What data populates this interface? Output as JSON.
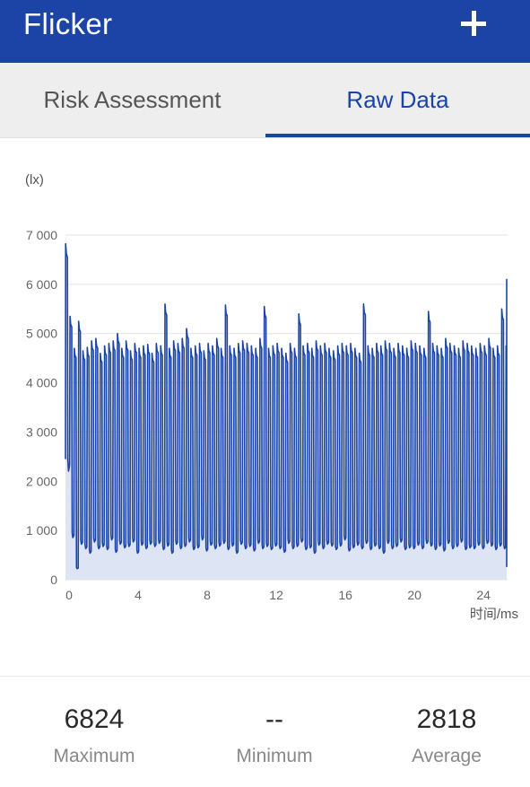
{
  "header": {
    "title": "Flicker",
    "add_icon": "plus-icon"
  },
  "tabs": [
    {
      "label": "Risk Assessment",
      "active": false
    },
    {
      "label": "Raw Data",
      "active": true
    }
  ],
  "colors": {
    "primary": "#1b44a6",
    "series": "#1b44a6",
    "fill": "#dde4f3"
  },
  "chart_data": {
    "type": "line",
    "ylabel": "(lx)",
    "xlabel": "时间/ms",
    "ylim": [
      0,
      7000
    ],
    "xlim": [
      0,
      25.6
    ],
    "yticks": [
      "0",
      "1 000",
      "2 000",
      "3 000",
      "4 000",
      "5 000",
      "6 000",
      "7 000"
    ],
    "xticks": [
      "0",
      "4",
      "8",
      "12",
      "16",
      "20",
      "24"
    ],
    "grid": true,
    "series": [
      {
        "period_ms": 0.25,
        "peak_values": [
          6824,
          5350,
          4700,
          5250,
          4650,
          4720,
          4850,
          4900,
          4600,
          4750,
          4800,
          4850,
          5000,
          4700,
          4850,
          4650,
          4800,
          4700,
          4750,
          4780,
          4600,
          4800,
          4750,
          5600,
          4700,
          4850,
          4800,
          4900,
          5100,
          4700,
          4750,
          4800,
          4650,
          4800,
          4750,
          4900,
          4700,
          5580,
          4750,
          4700,
          4800,
          4850,
          4800,
          4750,
          4700,
          4900,
          5550,
          4700,
          4750,
          4800,
          4700,
          4600,
          4800,
          4700,
          5400,
          4750,
          4800,
          4700,
          4850,
          4750,
          4800,
          4700,
          4650,
          4750,
          4800,
          4750,
          4800,
          4700,
          4600,
          5600,
          4750,
          4700,
          4800,
          4750,
          4850,
          4800,
          4700,
          4800,
          4750,
          4700,
          4850,
          4800,
          4750,
          4700,
          5450,
          4800,
          4750,
          4700,
          4900,
          4800,
          4750,
          4700,
          4850,
          4800,
          4750,
          4700,
          4800,
          4750,
          4900,
          4700,
          4750,
          5500,
          4750,
          4800,
          4700,
          4850,
          4800,
          5450,
          4700,
          4750,
          4800,
          4850,
          5400,
          4700,
          4750,
          4800,
          4700,
          4850,
          5350,
          4700,
          4750,
          4800,
          4700,
          4750,
          5550,
          4750,
          4700,
          6100
        ],
        "trough_values": [
          2450,
          950,
          250,
          800,
          700,
          600,
          850,
          700,
          750,
          680,
          900,
          620,
          800,
          720,
          750,
          850,
          600,
          780,
          700,
          800,
          750,
          820,
          680,
          760,
          600,
          800,
          700,
          750,
          850,
          680,
          720,
          900,
          650,
          780,
          700,
          760,
          820,
          680,
          760,
          600,
          800,
          700,
          750,
          650,
          820,
          700,
          750,
          680,
          760,
          700,
          620,
          820,
          700,
          750,
          850,
          680,
          720,
          600,
          780,
          700,
          800,
          760,
          680,
          760,
          900,
          650,
          720,
          780,
          700,
          820,
          680,
          760,
          700,
          600,
          820,
          700,
          750,
          850,
          680,
          720,
          700,
          780,
          700,
          820,
          760,
          680,
          760,
          650,
          820,
          700,
          750,
          850,
          680,
          720,
          700,
          780,
          700,
          820,
          760,
          680,
          760,
          700,
          820,
          700,
          750,
          650,
          680,
          720,
          700,
          780,
          700,
          820,
          760,
          680,
          760,
          900,
          820,
          700,
          750,
          850,
          680,
          720,
          700,
          780,
          700,
          300,
          760,
          680
        ]
      }
    ]
  },
  "stats": [
    {
      "value": "6824",
      "label": "Maximum"
    },
    {
      "value": "--",
      "label": "Minimum"
    },
    {
      "value": "2818",
      "label": "Average"
    }
  ]
}
